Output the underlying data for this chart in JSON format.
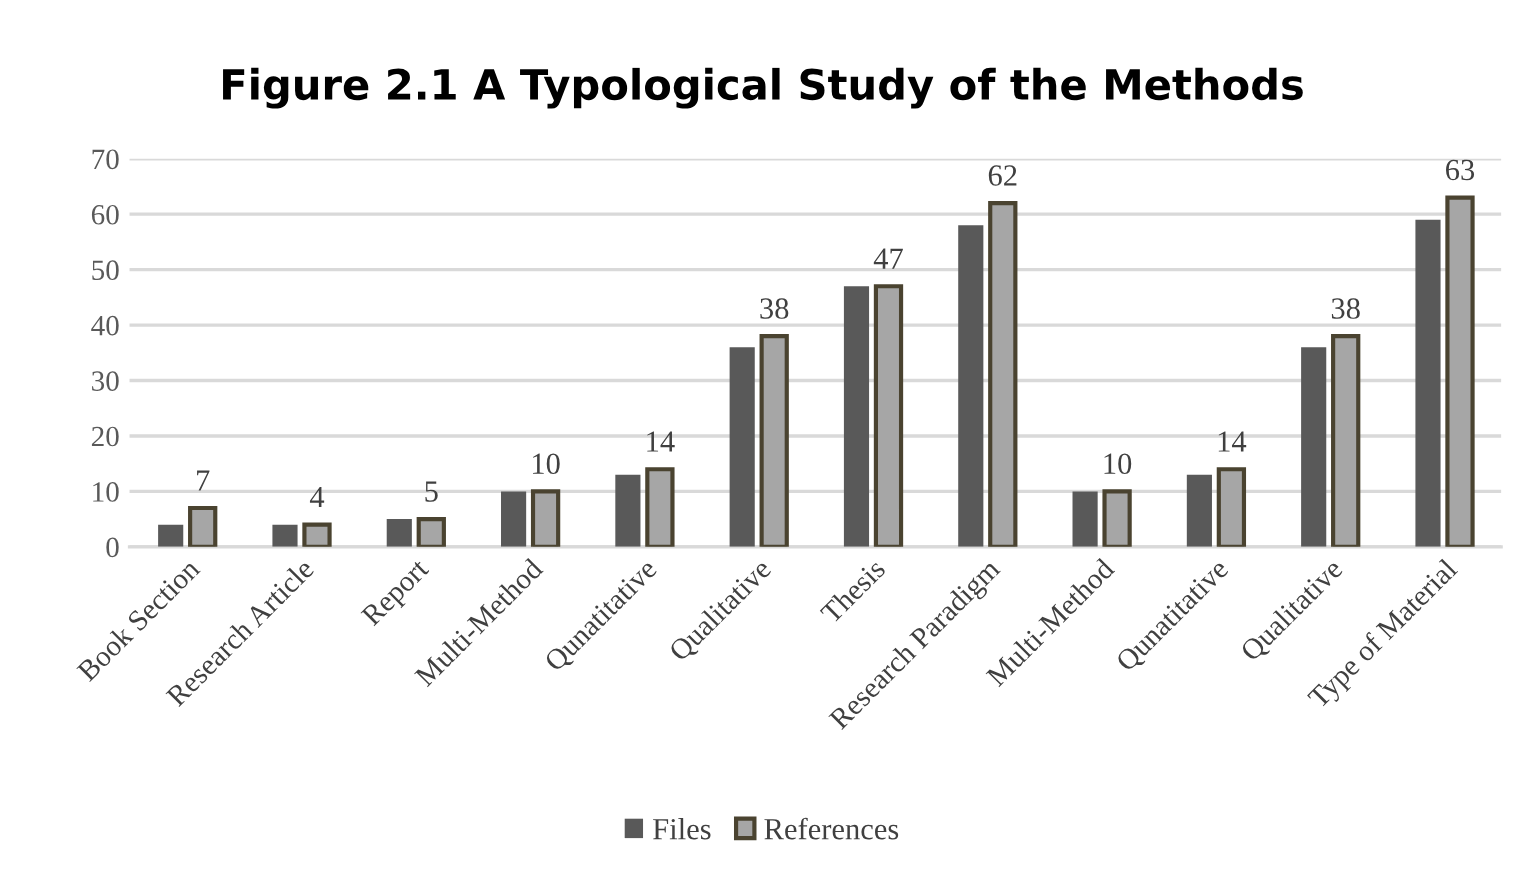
{
  "chart_data": {
    "type": "bar",
    "title": "Figure 2.1 A Typological Study of the Methods",
    "categories": [
      "Book Section",
      "Research Article",
      "Report",
      "Multi-Method",
      "Qunatitative",
      "Qualitative",
      "Thesis",
      "Research Paradigm",
      "Multi-Method",
      "Qunatitative",
      "Qualitative",
      "Type of Material"
    ],
    "series": [
      {
        "name": "Files",
        "color": "#595959",
        "values": [
          4,
          4,
          5,
          10,
          13,
          36,
          47,
          58,
          10,
          13,
          36,
          59
        ]
      },
      {
        "name": "References",
        "color": "#a6a6a6",
        "values": [
          7,
          4,
          5,
          10,
          14,
          38,
          47,
          62,
          10,
          14,
          38,
          63
        ],
        "value_labels": [
          "7",
          "4",
          "5",
          "10",
          "14",
          "38",
          "47",
          "62",
          "10",
          "14",
          "38",
          "63"
        ]
      }
    ],
    "ylim": [
      0,
      70
    ],
    "yticks": [
      0,
      10,
      20,
      30,
      40,
      50,
      60,
      70
    ],
    "grid": "y",
    "legend": "bottom"
  }
}
